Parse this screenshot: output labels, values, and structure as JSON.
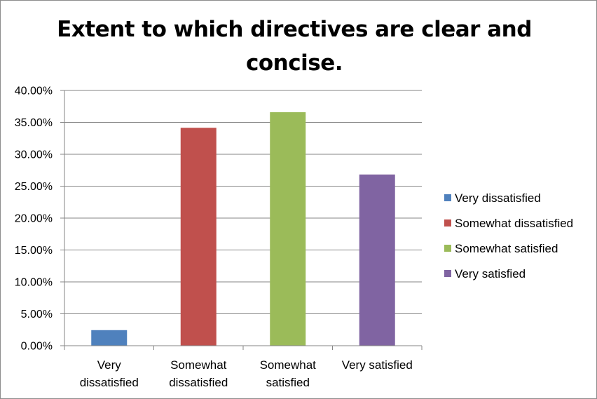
{
  "chart_data": {
    "type": "bar",
    "title": "Extent to which directives are clear and concise.",
    "categories": [
      "Very dissatisfied",
      "Somewhat dissatisfied",
      "Somewhat satisfied",
      "Very satisfied"
    ],
    "category_label_lines": [
      [
        "Very",
        "dissatisfied"
      ],
      [
        "Somewhat",
        "dissatisfied"
      ],
      [
        "Somewhat",
        "satisfied"
      ],
      [
        "Very satisfied"
      ]
    ],
    "values": [
      2.44,
      34.15,
      36.59,
      26.83
    ],
    "colors": [
      "#4f81bd",
      "#c0504d",
      "#9bbb59",
      "#8064a2"
    ],
    "ylim": [
      0,
      40
    ],
    "yticks": [
      0,
      5,
      10,
      15,
      20,
      25,
      30,
      35,
      40
    ],
    "ytick_labels": [
      "0.00%",
      "5.00%",
      "10.00%",
      "15.00%",
      "20.00%",
      "25.00%",
      "30.00%",
      "35.00%",
      "40.00%"
    ],
    "legend": [
      "Very dissatisfied",
      "Somewhat dissatisfied",
      "Somewhat satisfied",
      "Very satisfied"
    ],
    "legend_position": "right",
    "grid": true,
    "xlabel": "",
    "ylabel": ""
  }
}
